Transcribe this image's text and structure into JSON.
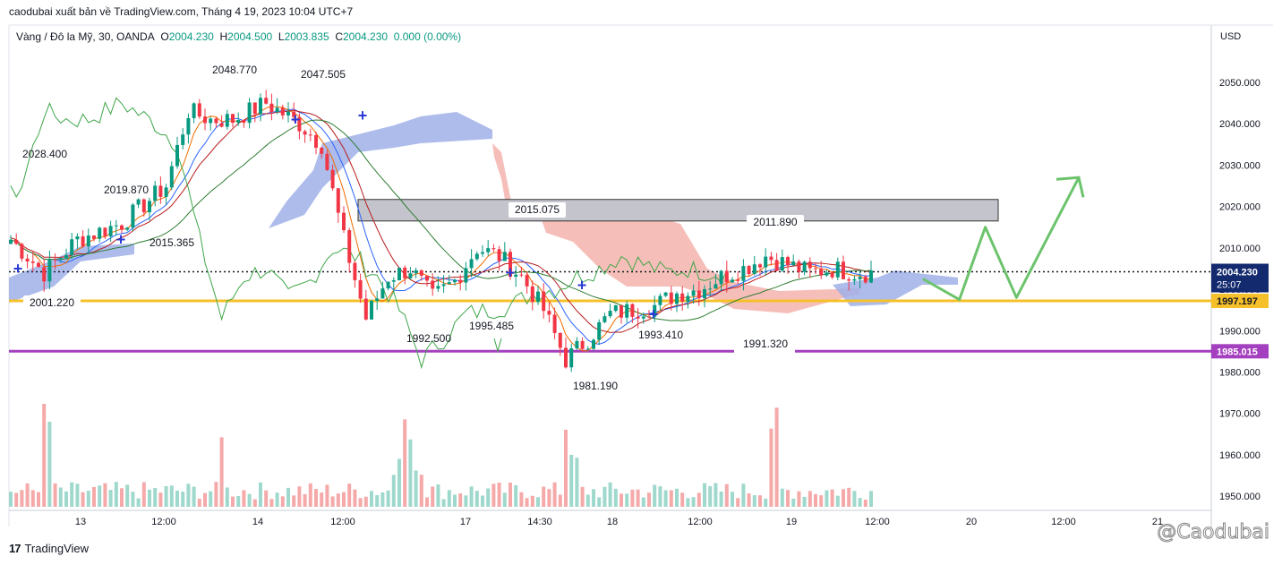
{
  "header": {
    "publish_line": "caodubai xuất bản về TradingView.com, Tháng 4 19, 2023 10:04 UTC+7"
  },
  "symbol": {
    "name": "Vàng / Đô la Mỹ, 30, OANDA",
    "open_label": "O",
    "open": "2004.230",
    "high_label": "H",
    "high": "2004.500",
    "low_label": "L",
    "low": "2003.835",
    "close_label": "C",
    "close": "2004.230",
    "change": "0.000 (0.00%)"
  },
  "branding": {
    "logo_text": "TradingView",
    "logo_mark": "17",
    "watermark": "@Caodubai"
  },
  "colors": {
    "up": "#089981",
    "down": "#f23645",
    "ma_red": "#b71c1c",
    "ma_green": "#2e7d32",
    "ma_orange": "#ef6c00",
    "ma_blue": "#2962ff",
    "cloud_bull": "#9fb0e8",
    "cloud_bear": "#f4b3ad",
    "support_yellow": "#f5c02a",
    "support_purple": "#a43fbf",
    "projection": "#6cc36c",
    "price_badge": "#132a6e"
  },
  "chart_data": {
    "type": "candlestick",
    "y_axis_unit": "USD",
    "ylim": [
      1947,
      2058
    ],
    "y_ticks": [
      "2050.000",
      "2040.000",
      "2030.000",
      "2020.000",
      "2010.000",
      "2000.000",
      "1990.000",
      "1980.000",
      "1970.000",
      "1960.000",
      "1950.000"
    ],
    "x_ticks": [
      "13",
      "12:00",
      "14",
      "12:00",
      "17",
      "14:30",
      "18",
      "12:00",
      "19",
      "12:00",
      "20",
      "12:00",
      "21"
    ],
    "current_price": 2004.23,
    "current_price_label": "2004.230",
    "countdown": "25:07",
    "levels": [
      {
        "price": 1997.197,
        "label": "1997.197",
        "color": "#f5c02a"
      },
      {
        "price": 1985.015,
        "label": "1985.015",
        "color": "#a43fbf"
      }
    ],
    "resistance_zone": [
      2016.5,
      2021.7
    ],
    "annotations": [
      {
        "label": "2028.400"
      },
      {
        "label": "2019.870"
      },
      {
        "label": "2015.365"
      },
      {
        "label": "2048.770"
      },
      {
        "label": "2047.505"
      },
      {
        "label": "2001.220"
      },
      {
        "label": "1992.500"
      },
      {
        "label": "1995.485"
      },
      {
        "label": "2015.075"
      },
      {
        "label": "1981.190"
      },
      {
        "label": "1993.410"
      },
      {
        "label": "2011.890"
      },
      {
        "label": "1991.320"
      }
    ],
    "projection_path": [
      [
        20,
        2002.5
      ],
      [
        34,
        1997.5
      ],
      [
        44,
        2015
      ],
      [
        56,
        1998
      ],
      [
        80,
        2027
      ]
    ],
    "anchors": [
      [
        0,
        2012
      ],
      [
        6,
        2004
      ],
      [
        12,
        2012
      ],
      [
        20,
        2016
      ],
      [
        28,
        2025
      ],
      [
        32,
        2043
      ],
      [
        36,
        2041
      ],
      [
        40,
        2041
      ],
      [
        46,
        2045
      ],
      [
        52,
        2040
      ],
      [
        56,
        2035
      ],
      [
        60,
        2012
      ],
      [
        64,
        1993
      ],
      [
        68,
        2003
      ],
      [
        72,
        2005
      ],
      [
        76,
        1998
      ],
      [
        80,
        2002
      ],
      [
        84,
        2010
      ],
      [
        88,
        2008
      ],
      [
        92,
        2003
      ],
      [
        96,
        1995
      ],
      [
        100,
        1983
      ],
      [
        104,
        1988
      ],
      [
        108,
        1994
      ],
      [
        112,
        1995
      ],
      [
        116,
        1996
      ],
      [
        120,
        1999
      ],
      [
        124,
        2000
      ],
      [
        128,
        2003
      ],
      [
        132,
        2005
      ],
      [
        136,
        2008
      ],
      [
        140,
        2006
      ],
      [
        144,
        2004
      ],
      [
        148,
        2005
      ],
      [
        152,
        2004
      ]
    ]
  }
}
